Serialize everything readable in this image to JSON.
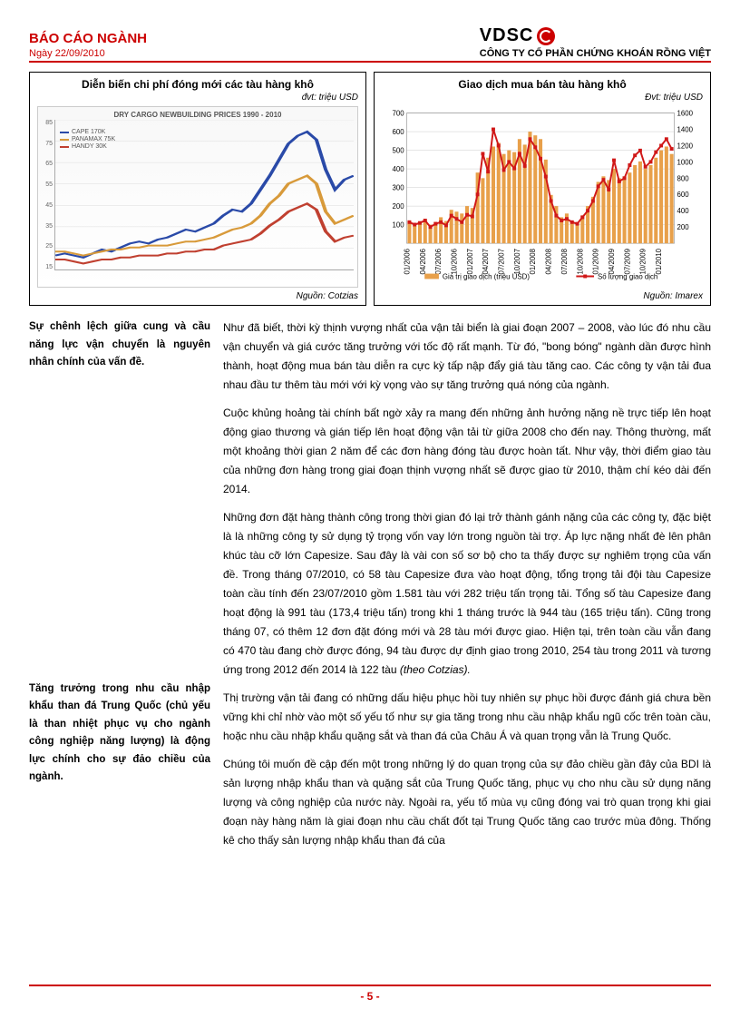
{
  "header": {
    "title": "BÁO CÁO NGÀNH",
    "date": "Ngày 22/09/2010",
    "logo": "VDSC",
    "company": "CÔNG TY CỔ PHẦN CHỨNG KHOÁN RỒNG VIỆT"
  },
  "chart_left": {
    "type": "line",
    "title": "Diễn biến chi phí đóng mới các tàu hàng khô",
    "unit": "đvt: triệu  USD",
    "img_title": "DRY CARGO NEWBUILDING PRICES 1990 - 2010",
    "source": "Nguồn: Cotzias",
    "y_ticks": [
      "85",
      "75",
      "65",
      "55",
      "45",
      "35",
      "25",
      "15"
    ],
    "series": [
      {
        "name": "CAPE 170K",
        "color": "#2a4aa8",
        "points": [
          22,
          23,
          22,
          21,
          23,
          25,
          24,
          26,
          28,
          29,
          28,
          30,
          31,
          33,
          35,
          34,
          36,
          38,
          42,
          45,
          44,
          48,
          55,
          62,
          70,
          78,
          82,
          84,
          80,
          65,
          55,
          60,
          62
        ]
      },
      {
        "name": "PANAMAX 75K",
        "color": "#d89a3a",
        "points": [
          24,
          24,
          23,
          22,
          23,
          24,
          25,
          25,
          26,
          26,
          27,
          27,
          27,
          28,
          29,
          29,
          30,
          31,
          33,
          35,
          36,
          38,
          42,
          48,
          52,
          58,
          60,
          62,
          58,
          44,
          38,
          40,
          42
        ]
      },
      {
        "name": "HANDY 30K",
        "color": "#c04030",
        "points": [
          20,
          20,
          19,
          18,
          19,
          20,
          20,
          21,
          21,
          22,
          22,
          22,
          23,
          23,
          24,
          24,
          25,
          25,
          27,
          28,
          29,
          30,
          33,
          37,
          40,
          44,
          46,
          48,
          45,
          34,
          29,
          31,
          32
        ]
      }
    ],
    "ylim": [
      15,
      90
    ]
  },
  "chart_right": {
    "type": "combo-bar-line",
    "title": "Giao dịch mua bán tàu hàng khô",
    "unit": "Đvt: triệu USD",
    "source": "Nguồn: Imarex",
    "y_left": {
      "lim": [
        0,
        700
      ],
      "ticks": [
        100,
        200,
        300,
        400,
        500,
        600,
        700
      ]
    },
    "y_right": {
      "lim": [
        0,
        1600
      ],
      "ticks": [
        200,
        400,
        600,
        800,
        1000,
        1200,
        1400,
        1600
      ]
    },
    "x_labels": [
      "01/2006",
      "04/2006",
      "07/2006",
      "10/2006",
      "01/2007",
      "04/2007",
      "07/2007",
      "10/2007",
      "01/2008",
      "04/2008",
      "07/2008",
      "10/2008",
      "01/2009",
      "04/2009",
      "07/2009",
      "10/2009",
      "01/2010"
    ],
    "bars": {
      "name": "Giá trị giao dịch (triệu USD)",
      "color": "#e8a04a",
      "values": [
        120,
        95,
        110,
        130,
        100,
        115,
        140,
        120,
        180,
        170,
        160,
        200,
        190,
        380,
        350,
        460,
        520,
        540,
        480,
        500,
        490,
        560,
        530,
        600,
        580,
        560,
        450,
        260,
        200,
        140,
        160,
        120,
        110,
        150,
        200,
        250,
        330,
        360,
        340,
        400,
        350,
        360,
        380,
        420,
        440,
        400,
        420,
        460,
        500,
        520,
        480
      ]
    },
    "line": {
      "name": "Số lượng giao dịch",
      "color": "#d01818",
      "marker": "square",
      "values": [
        260,
        230,
        250,
        280,
        200,
        240,
        260,
        220,
        340,
        300,
        260,
        350,
        330,
        600,
        1100,
        880,
        1400,
        1200,
        900,
        1000,
        920,
        1100,
        950,
        1280,
        1180,
        1040,
        820,
        520,
        340,
        280,
        300,
        260,
        240,
        320,
        400,
        520,
        700,
        780,
        660,
        1020,
        760,
        800,
        960,
        1080,
        1140,
        940,
        1000,
        1120,
        1200,
        1280,
        1160
      ]
    },
    "legend": {
      "bar": "Giá trị giao dịch (triệu USD)",
      "line": "Số lượng giao dịch"
    },
    "background": "#ffffff",
    "grid_color": "#cccccc"
  },
  "sidebar": {
    "note1": "Sự chênh lệch giữa cung và cầu năng lực vận chuyển là nguyên nhân chính của vấn đề.",
    "note2": "Tăng trưởng trong nhu cầu nhập khẩu than đá Trung Quốc (chủ yếu là than nhiệt phục vụ cho ngành công nghiệp năng lượng) là động lực chính cho sự đảo chiều của ngành."
  },
  "paragraphs": {
    "p1": "Như đã biết, thời kỳ thịnh vượng nhất của vận tải biển là giai đoạn 2007 – 2008, vào lúc đó nhu cầu vận chuyển và giá cước tăng trưởng với tốc độ rất mạnh. Từ đó, \"bong bóng\" ngành dần được hình thành, hoạt động mua bán tàu diễn ra cực kỳ tấp nập đẩy giá tàu tăng cao. Các công ty vận tải đua nhau đầu tư thêm tàu mới với kỳ vọng vào sự tăng trưởng quá nóng của ngành.",
    "p2": "Cuộc khủng hoảng tài chính bất ngờ xảy ra mang đến những ảnh hưởng nặng nề trực tiếp lên hoạt động giao thương và gián tiếp lên hoạt động vận tải từ giữa 2008 cho đến nay. Thông thường, mất một khoảng thời gian 2 năm để các đơn hàng đóng tàu được hoàn tất. Như vậy, thời điểm giao tàu của những đơn hàng trong giai đoạn thịnh vượng nhất sẽ được giao từ 2010, thậm chí kéo dài đến 2014.",
    "p3a": "Những đơn đặt hàng thành công trong thời gian đó lại trở thành gánh nặng của các công ty, đặc biệt là là những công ty sử dụng tỷ trọng vốn vay lớn trong nguồn tài trợ. Áp lực nặng nhất đè lên phân khúc tàu cỡ lớn Capesize. Sau đây là vài con số sơ bộ cho ta thấy được sự nghiêm trọng của vấn đề. Trong tháng 07/2010, có 58 tàu Capesize đưa vào hoạt động, tổng trọng tải đội tàu Capesize toàn cầu tính đến 23/07/2010 gồm 1.581 tàu với 282 triệu tấn trọng tải. Tổng số tàu Capesize đang hoạt động là 991 tàu (173,4 triệu tấn) trong khi 1 tháng trước là 944 tàu (165 triệu tấn). Cũng trong tháng 07, có thêm 12 đơn đặt đóng mới và 28 tàu mới được giao. Hiện tại, trên toàn cầu vẫn đang có 470 tàu đang chờ được đóng, 94 tàu được dự định giao trong 2010, 254 tàu trong 2011 và tương ứng trong 2012 đến 2014 là 122 tàu ",
    "p3b": "(theo Cotzias).",
    "p4": "Thị trường vận tải đang có những dấu hiệu phục hồi tuy nhiên sự phục hồi được đánh giá chưa bền vững khi chỉ nhờ vào một số yếu tố như sự gia tăng trong nhu cầu nhập khẩu ngũ cốc trên toàn cầu, hoặc nhu cầu nhập khẩu quặng sắt và than đá của Châu Á và quan trọng vẫn là Trung Quốc.",
    "p5": "Chúng tôi muốn đề cập đến một trong những lý do quan trọng của sự đảo chiều gần đây của BDI là sản lượng nhập khẩu than và quặng sắt của Trung Quốc tăng, phục vụ cho nhu cầu sử dụng năng lượng và công nghiệp của nước này. Ngoài ra, yếu tố mùa vụ cũng đóng vai trò quan trọng khi giai đoạn này hàng năm là giai đoạn nhu cầu chất đốt tại Trung Quốc tăng cao trước mùa đông. Thống kê cho thấy sản lượng nhập khẩu than đá của"
  },
  "footer": {
    "page": "- 5 -"
  }
}
